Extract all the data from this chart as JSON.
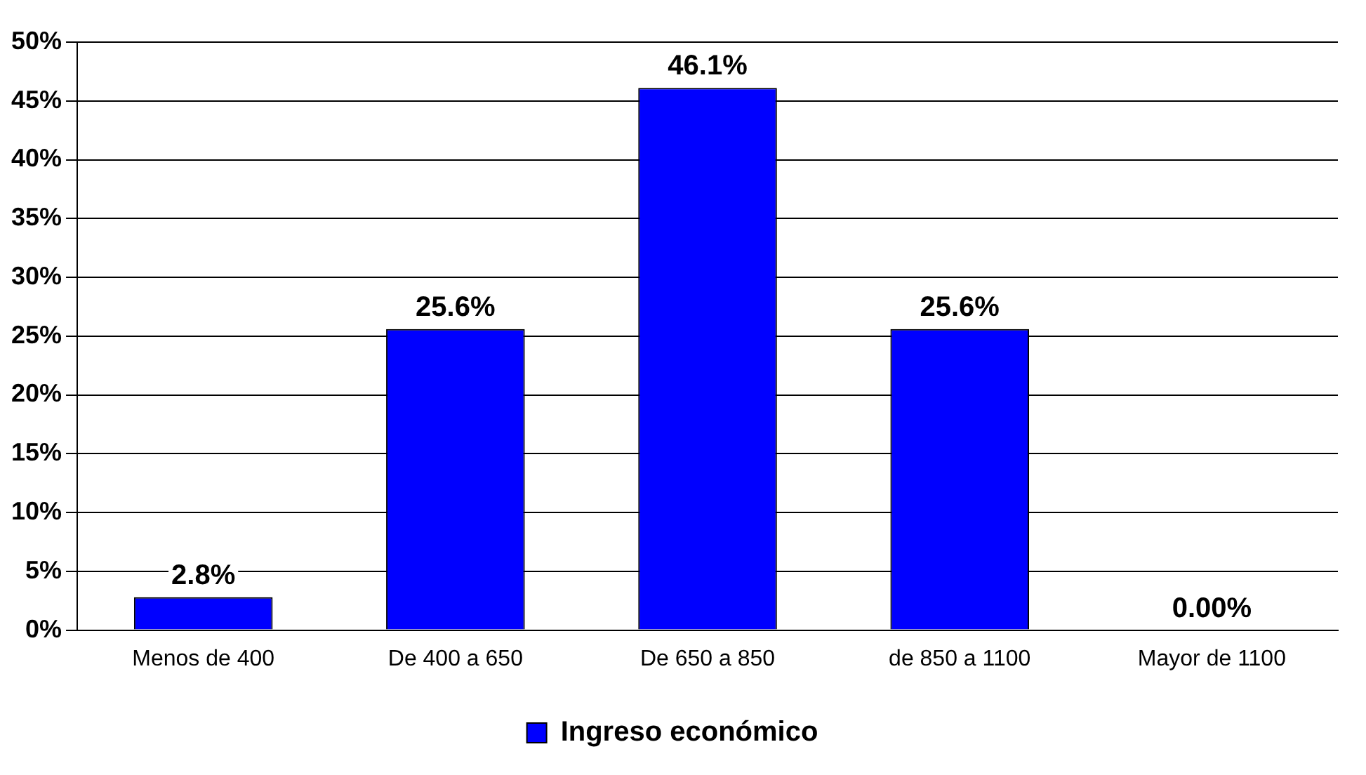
{
  "chart_data": {
    "type": "bar",
    "categories": [
      "Menos de 400",
      "De 400 a 650",
      "De 650 a 850",
      "de 850 a 1100",
      "Mayor de 1100"
    ],
    "series": [
      {
        "name": "Ingreso económico",
        "color": "#0000ff",
        "values": [
          2.8,
          25.6,
          46.1,
          25.6,
          0
        ],
        "value_labels": [
          "2.8%",
          "25.6%",
          "46.1%",
          "25.6%",
          "0.00%"
        ]
      }
    ],
    "ylim": [
      0,
      50
    ],
    "yticks": [
      {
        "value": 0,
        "label": "0%"
      },
      {
        "value": 5,
        "label": "5%"
      },
      {
        "value": 10,
        "label": "10%"
      },
      {
        "value": 15,
        "label": "15%"
      },
      {
        "value": 20,
        "label": "20%"
      },
      {
        "value": 25,
        "label": "25%"
      },
      {
        "value": 30,
        "label": "30%"
      },
      {
        "value": 35,
        "label": "35%"
      },
      {
        "value": 40,
        "label": "40%"
      },
      {
        "value": 45,
        "label": "45%"
      },
      {
        "value": 50,
        "label": "50%"
      }
    ],
    "grid": "y",
    "legend": "bottom"
  }
}
